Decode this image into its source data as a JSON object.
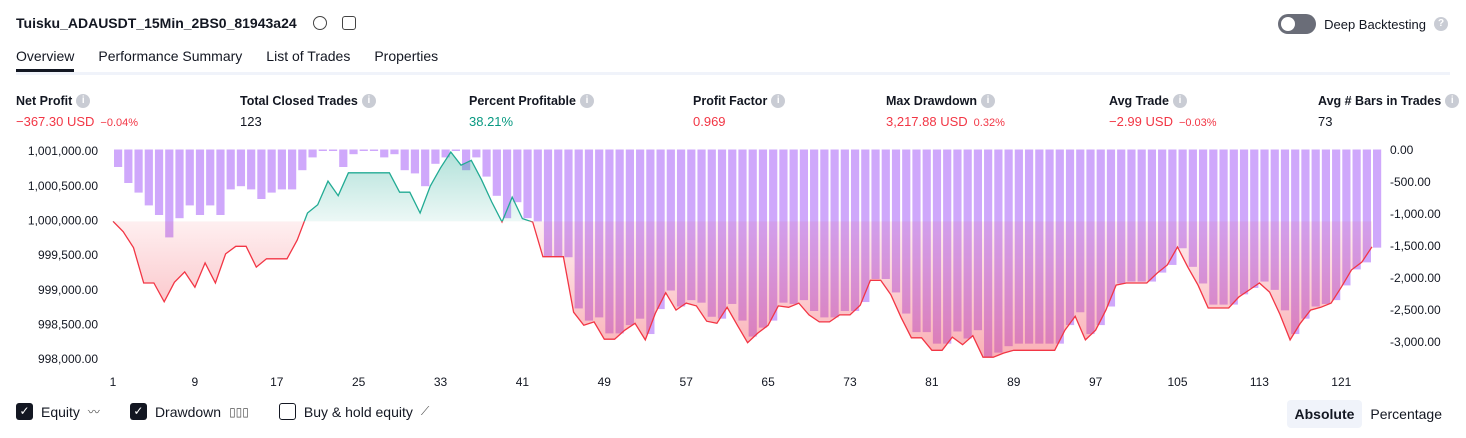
{
  "header": {
    "title": "Tuisku_ADAUSDT_15Min_2BS0_81943a24",
    "toggle_label": "Deep Backtesting"
  },
  "tabs": [
    "Overview",
    "Performance Summary",
    "List of Trades",
    "Properties"
  ],
  "metrics": [
    {
      "label": "Net Profit",
      "value": "−367.30 USD",
      "pct": "−0.04%",
      "color": "#f23645"
    },
    {
      "label": "Total Closed Trades",
      "value": "123",
      "color": "#131722"
    },
    {
      "label": "Percent Profitable",
      "value": "38.21%",
      "color": "#089981"
    },
    {
      "label": "Profit Factor",
      "value": "0.969",
      "color": "#f23645"
    },
    {
      "label": "Max Drawdown",
      "value": "3,217.88 USD",
      "pct": "0.32%",
      "color": "#f23645"
    },
    {
      "label": "Avg Trade",
      "value": "−2.99 USD",
      "pct": "−0.03%",
      "color": "#f23645"
    },
    {
      "label": "Avg # Bars in Trades",
      "value": "73",
      "color": "#131722"
    }
  ],
  "chart_data": {
    "type": "combo",
    "x": [
      1,
      2,
      3,
      4,
      5,
      6,
      7,
      8,
      9,
      10,
      11,
      12,
      13,
      14,
      15,
      16,
      17,
      18,
      19,
      20,
      21,
      22,
      23,
      24,
      25,
      26,
      27,
      28,
      29,
      30,
      31,
      32,
      33,
      34,
      35,
      36,
      37,
      38,
      39,
      40,
      41,
      42,
      43,
      44,
      45,
      46,
      47,
      48,
      49,
      50,
      51,
      52,
      53,
      54,
      55,
      56,
      57,
      58,
      59,
      60,
      61,
      62,
      63,
      64,
      65,
      66,
      67,
      68,
      69,
      70,
      71,
      72,
      73,
      74,
      75,
      76,
      77,
      78,
      79,
      80,
      81,
      82,
      83,
      84,
      85,
      86,
      87,
      88,
      89,
      90,
      91,
      92,
      93,
      94,
      95,
      96,
      97,
      98,
      99,
      100,
      101,
      102,
      103,
      104,
      105,
      106,
      107,
      108,
      109,
      110,
      111,
      112,
      113,
      114,
      115,
      116,
      117,
      118,
      119,
      120,
      121,
      122,
      123,
      124
    ],
    "xlim": [
      1,
      124
    ],
    "xticks": [
      1,
      9,
      17,
      25,
      33,
      41,
      49,
      57,
      65,
      73,
      81,
      89,
      97,
      105,
      113,
      121
    ],
    "ylim": [
      998000,
      1001000
    ],
    "yticks": [
      {
        "value": 1001000,
        "label": "1,001,000.00"
      },
      {
        "value": 1000500,
        "label": "1,000,500.00"
      },
      {
        "value": 1000000,
        "label": "1,000,000.00"
      },
      {
        "value": 999500,
        "label": "999,500.00"
      },
      {
        "value": 999000,
        "label": "999,000.00"
      },
      {
        "value": 998500,
        "label": "998,500.00"
      },
      {
        "value": 998000,
        "label": "998,000.00"
      }
    ],
    "y2lim": [
      -3000,
      0
    ],
    "y2ticks": [
      {
        "value": 0,
        "label": "0.00"
      },
      {
        "value": -500,
        "label": "-500.00"
      },
      {
        "value": -1000,
        "label": "-1,000.00"
      },
      {
        "value": -1500,
        "label": "-1,500.00"
      },
      {
        "value": -2000,
        "label": "-2,000.00"
      },
      {
        "value": -2500,
        "label": "-2,500.00"
      },
      {
        "value": -3000,
        "label": "-3,000.00"
      }
    ],
    "series": [
      {
        "name": "Equity",
        "type": "area",
        "color": "#22ab94",
        "negative_color": "#f23645",
        "values": [
          1000000,
          999850,
          999620,
          999110,
          999110,
          998840,
          999120,
          999270,
          999050,
          999400,
          999110,
          999530,
          999640,
          999640,
          999340,
          999460,
          999460,
          999460,
          999730,
          1000120,
          1000240,
          1000580,
          1000370,
          1000700,
          1000700,
          1000700,
          1000700,
          1000700,
          1000420,
          1000420,
          1000120,
          1000510,
          1000770,
          1001000,
          1000810,
          1000880,
          1000600,
          1000280,
          999990,
          1000350,
          1000040,
          999990,
          999490,
          999490,
          999490,
          998690,
          998500,
          998550,
          998300,
          998300,
          998430,
          998530,
          998290,
          998680,
          998970,
          998720,
          998820,
          998780,
          998560,
          998530,
          998760,
          998500,
          998250,
          998390,
          998500,
          998780,
          998760,
          998820,
          998650,
          998550,
          998550,
          998650,
          998650,
          998790,
          999150,
          999150,
          998940,
          998610,
          998320,
          998320,
          998140,
          998140,
          998330,
          998220,
          998350,
          998040,
          998040,
          998100,
          998140,
          998140,
          998140,
          998140,
          998140,
          998430,
          998630,
          998290,
          998430,
          998720,
          999080,
          999110,
          999110,
          999110,
          999250,
          999370,
          999630,
          999340,
          999080,
          998750,
          998750,
          998750,
          998910,
          999010,
          999110,
          998980,
          998660,
          998290,
          998530,
          998720,
          998760,
          998820,
          999050,
          999300,
          999410,
          999632.7
        ]
      },
      {
        "name": "Drawdown",
        "type": "bar",
        "axis": "y2",
        "color": "#cfa8fb",
        "values": [
          -250,
          -500,
          -650,
          -850,
          -1000,
          -1350,
          -1050,
          -850,
          -1000,
          -850,
          -1000,
          -600,
          -550,
          -600,
          -750,
          -650,
          -600,
          -600,
          -300,
          -100,
          0,
          0,
          -250,
          -50,
          0,
          0,
          -100,
          -50,
          -300,
          -350,
          -550,
          -200,
          -100,
          0,
          -300,
          -100,
          -400,
          -700,
          -1050,
          -800,
          -1050,
          -1100,
          -1660,
          -1660,
          -1660,
          -2460,
          -2650,
          -2600,
          -2850,
          -2850,
          -2720,
          -2620,
          -2860,
          -2470,
          -2180,
          -2430,
          -2330,
          -2370,
          -2590,
          -2620,
          -2390,
          -2650,
          -2900,
          -2760,
          -2650,
          -2370,
          -2390,
          -2330,
          -2500,
          -2600,
          -2600,
          -2500,
          -2500,
          -2360,
          -2000,
          -2000,
          -2210,
          -2540,
          -2830,
          -2830,
          -3010,
          -3010,
          -2820,
          -2930,
          -2800,
          -3217.88,
          -3150,
          -3050,
          -3010,
          -3010,
          -3010,
          -3010,
          -3010,
          -2720,
          -2520,
          -2860,
          -2720,
          -2430,
          -2070,
          -2040,
          -2040,
          -2040,
          -1900,
          -1780,
          -1520,
          -1810,
          -2070,
          -2400,
          -2400,
          -2400,
          -2240,
          -2140,
          -2040,
          -2170,
          -2490,
          -2860,
          -2620,
          -2430,
          -2390,
          -2330,
          -2100,
          -1850,
          -1740,
          -1510
        ]
      }
    ]
  },
  "footer": {
    "buy_hold_label": "Buy & hold equity",
    "modes": [
      "Absolute",
      "Percentage"
    ]
  }
}
